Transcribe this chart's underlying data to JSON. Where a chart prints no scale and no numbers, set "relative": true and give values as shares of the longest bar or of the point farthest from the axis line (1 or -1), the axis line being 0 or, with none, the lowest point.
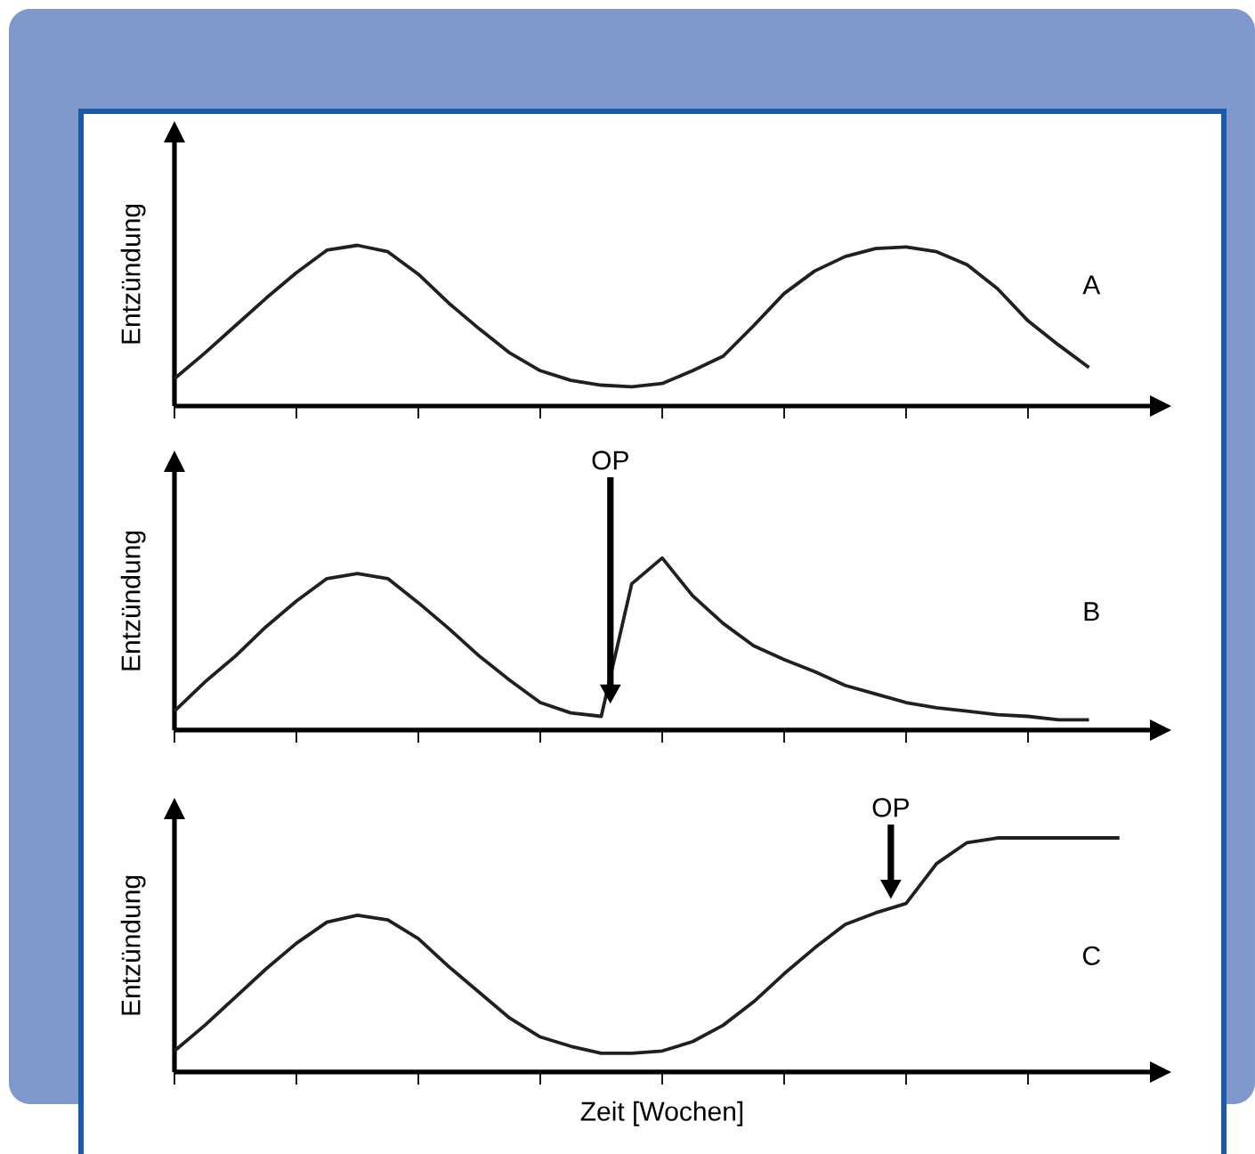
{
  "chart_data": [
    {
      "type": "line",
      "relative": true,
      "ylabel": "Entzündung",
      "color": "#231f20",
      "line_style": "solid",
      "categories": [
        null,
        null,
        null,
        null,
        null,
        null,
        null,
        null,
        null,
        null,
        null,
        null,
        null,
        null,
        null,
        null,
        null,
        null,
        null,
        null,
        null,
        null,
        null,
        null,
        null,
        null,
        null,
        null,
        null,
        null,
        null
      ],
      "values": [
        0.17,
        0.33,
        0.5,
        0.67,
        0.83,
        0.97,
        1,
        0.96,
        0.82,
        0.64,
        0.48,
        0.33,
        0.22,
        0.16,
        0.13,
        0.12,
        0.14,
        0.22,
        0.31,
        0.5,
        0.7,
        0.84,
        0.93,
        0.98,
        0.99,
        0.96,
        0.88,
        0.73,
        0.53,
        0.38,
        0.24
      ],
      "annotations": [
        "A"
      ]
    },
    {
      "type": "line",
      "relative": true,
      "ylabel": "Entzündung",
      "color": "#231f20",
      "line_style": "solid",
      "categories": [
        null,
        null,
        null,
        null,
        null,
        null,
        null,
        null,
        null,
        null,
        null,
        null,
        null,
        null,
        null,
        null,
        null,
        null,
        null,
        null,
        null,
        null,
        null,
        null,
        null,
        null,
        null,
        null,
        null,
        null,
        null
      ],
      "values": [
        0.11,
        0.28,
        0.43,
        0.6,
        0.75,
        0.88,
        0.91,
        0.88,
        0.74,
        0.59,
        0.43,
        0.29,
        0.16,
        0.1,
        0.08,
        0.85,
        1,
        0.78,
        0.62,
        0.49,
        0.41,
        0.34,
        0.26,
        0.21,
        0.16,
        0.13,
        0.11,
        0.09,
        0.08,
        0.06,
        0.06
      ],
      "annotations": [
        "B",
        "OP"
      ]
    },
    {
      "type": "line",
      "relative": true,
      "ylabel": "Entzündung",
      "xlabel": "Zeit [Wochen]",
      "color": "#231f20",
      "line_style": "solid",
      "categories": [
        null,
        null,
        null,
        null,
        null,
        null,
        null,
        null,
        null,
        null,
        null,
        null,
        null,
        null,
        null,
        null,
        null,
        null,
        null,
        null,
        null,
        null,
        null,
        null,
        null,
        null,
        null,
        null,
        null,
        null,
        null,
        null
      ],
      "values": [
        0.09,
        0.2,
        0.32,
        0.44,
        0.55,
        0.64,
        0.67,
        0.65,
        0.57,
        0.45,
        0.34,
        0.23,
        0.15,
        0.11,
        0.08,
        0.08,
        0.09,
        0.13,
        0.2,
        0.3,
        0.42,
        0.53,
        0.63,
        0.68,
        0.72,
        0.89,
        0.98,
        1,
        1,
        1,
        1,
        1
      ],
      "annotations": [
        "C",
        "OP"
      ]
    }
  ]
}
